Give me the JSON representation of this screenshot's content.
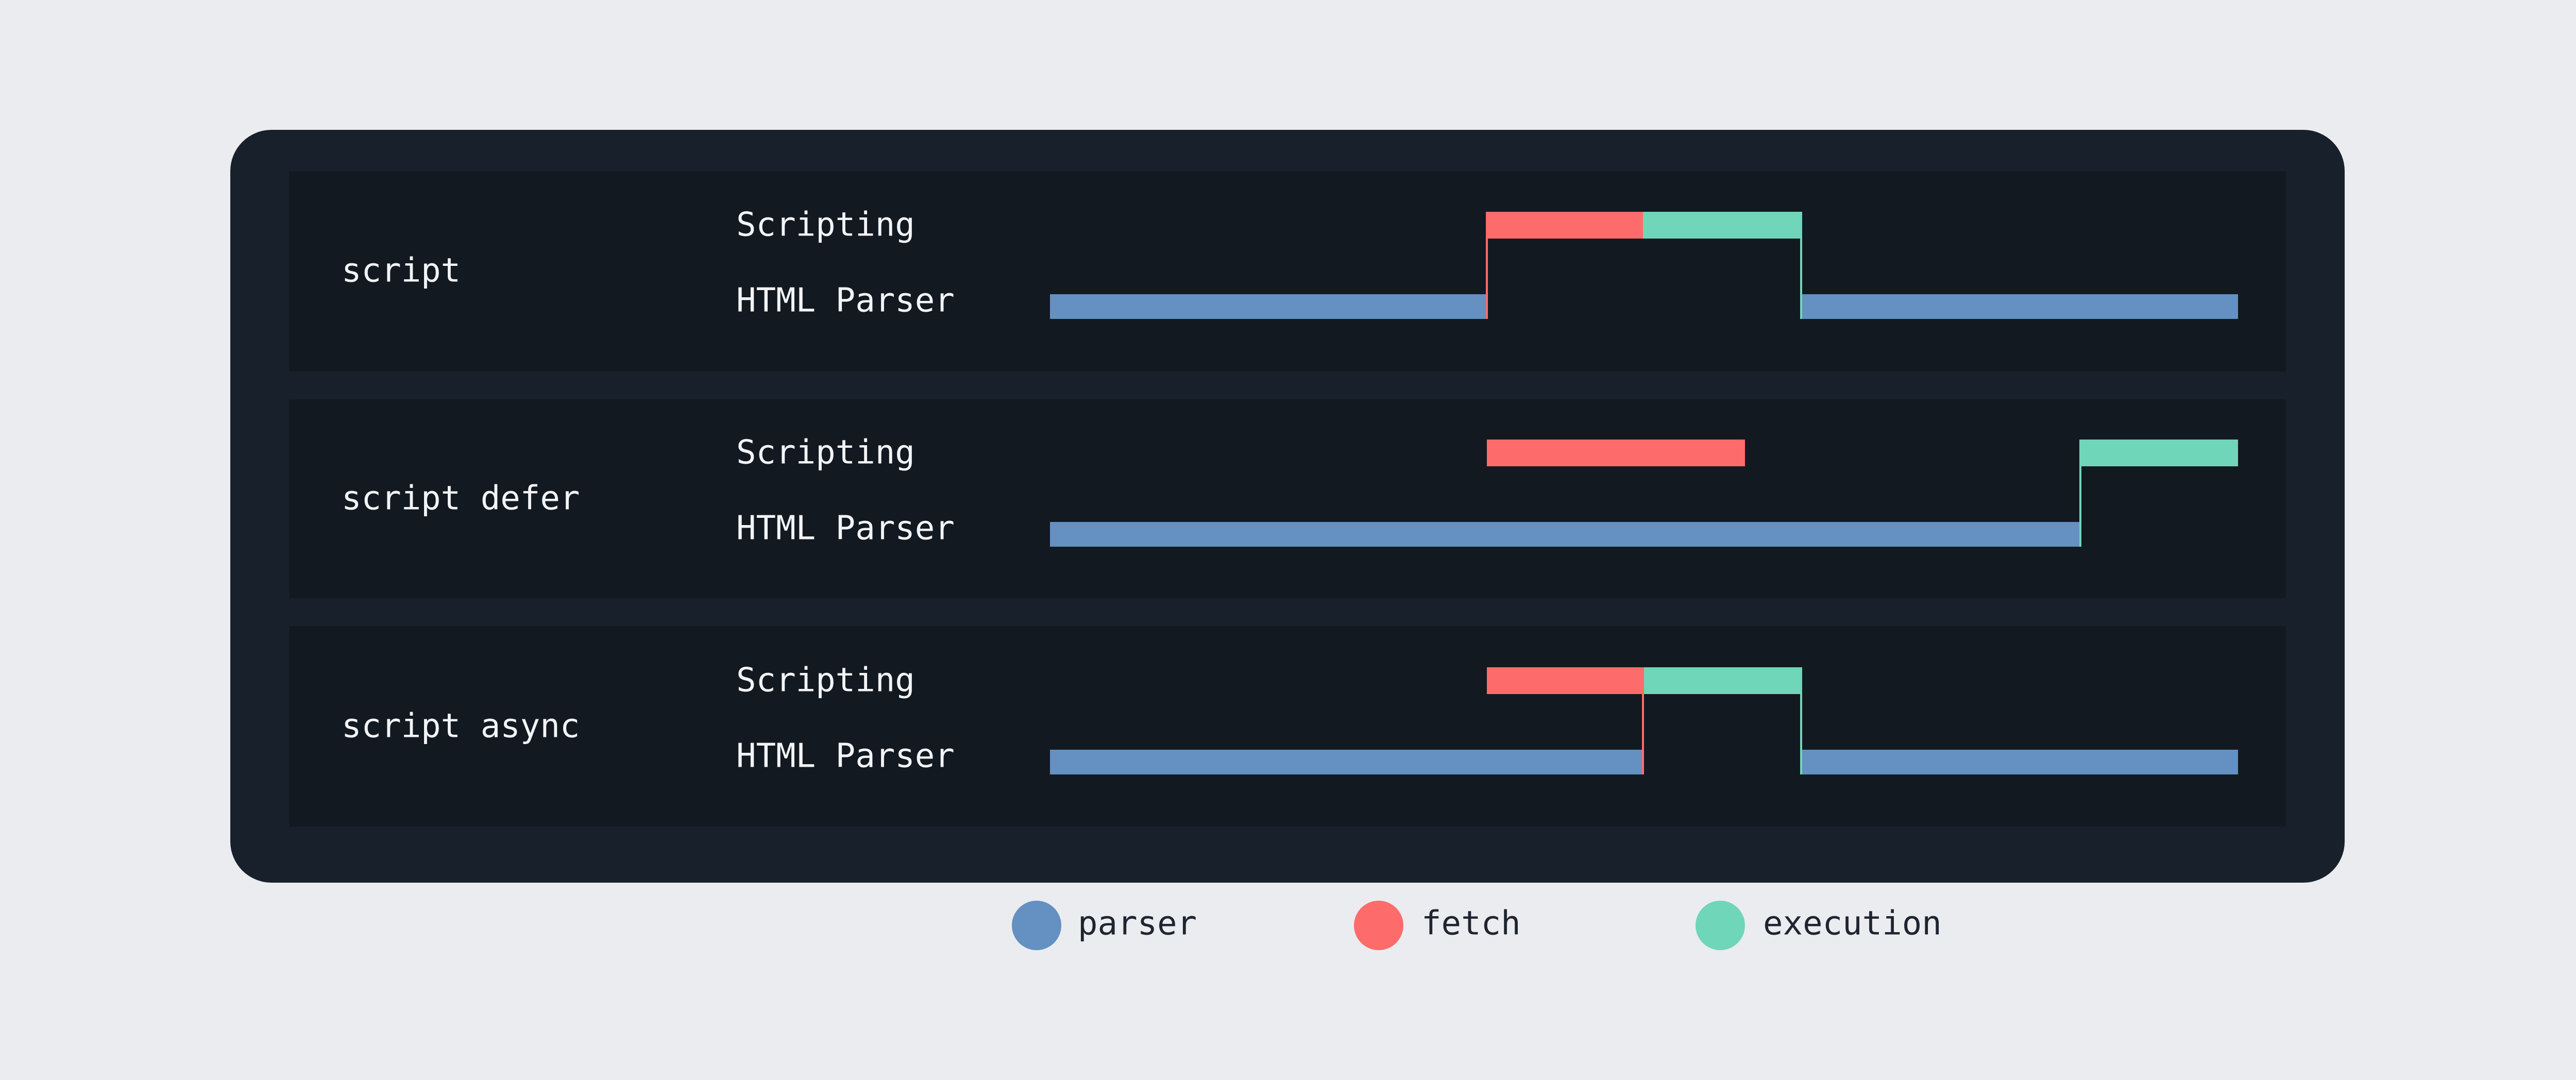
{
  "rows": [
    {
      "label": "script",
      "tracks": [
        "Scripting",
        "HTML Parser"
      ]
    },
    {
      "label": "script defer",
      "tracks": [
        "Scripting",
        "HTML Parser"
      ]
    },
    {
      "label": "script async",
      "tracks": [
        "Scripting",
        "HTML Parser"
      ]
    }
  ],
  "legend": {
    "items": [
      {
        "label": "parser"
      },
      {
        "label": "fetch"
      },
      {
        "label": "execution"
      }
    ]
  }
}
